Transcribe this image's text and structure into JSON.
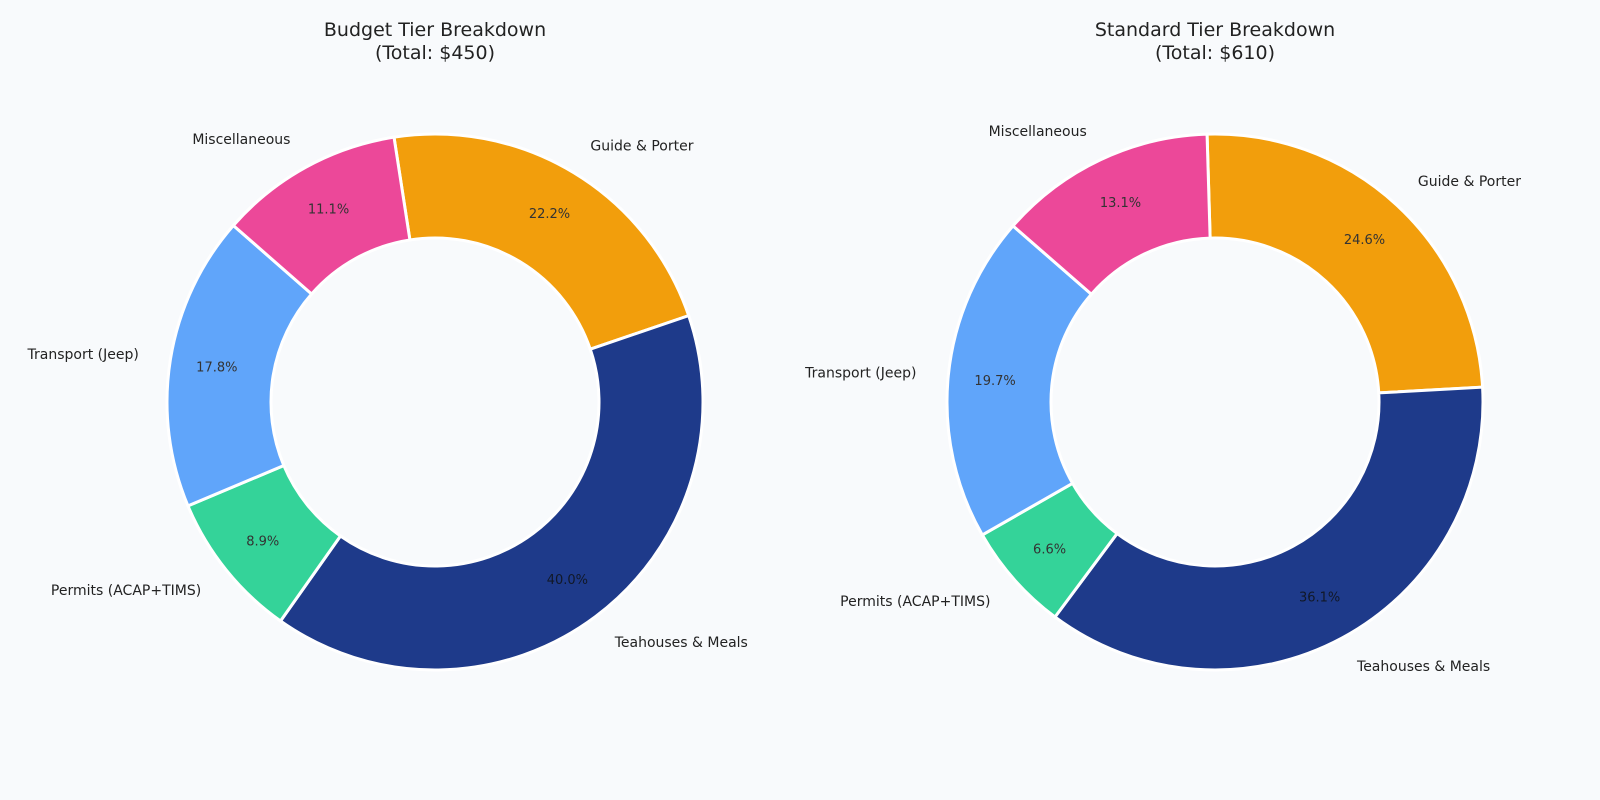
{
  "chart_data": [
    {
      "type": "pie",
      "variant": "donut",
      "title": "Budget Tier Breakdown",
      "subtitle": "(Total: $450)",
      "slices": [
        {
          "label": "Guide & Porter",
          "value": 100,
          "percent_label": "22.2%",
          "color": "#f29e0c"
        },
        {
          "label": "Teahouses & Meals",
          "value": 180,
          "percent_label": "40.0%",
          "color": "#1e3a8a"
        },
        {
          "label": "Permits (ACAP+TIMS)",
          "value": 40,
          "percent_label": "8.9%",
          "color": "#34d399"
        },
        {
          "label": "Transport (Jeep)",
          "value": 80,
          "percent_label": "17.8%",
          "color": "#60a5fa"
        },
        {
          "label": "Miscellaneous",
          "value": 50,
          "percent_label": "11.1%",
          "color": "#ec4899"
        }
      ]
    },
    {
      "type": "pie",
      "variant": "donut",
      "title": "Standard Tier Breakdown",
      "subtitle": "(Total: $610)",
      "slices": [
        {
          "label": "Guide & Porter",
          "value": 150,
          "percent_label": "24.6%",
          "color": "#f29e0c"
        },
        {
          "label": "Teahouses & Meals",
          "value": 220,
          "percent_label": "36.1%",
          "color": "#1e3a8a"
        },
        {
          "label": "Permits (ACAP+TIMS)",
          "value": 40,
          "percent_label": "6.6%",
          "color": "#34d399"
        },
        {
          "label": "Transport (Jeep)",
          "value": 120,
          "percent_label": "19.7%",
          "color": "#60a5fa"
        },
        {
          "label": "Miscellaneous",
          "value": 80,
          "percent_label": "13.1%",
          "color": "#ec4899"
        }
      ]
    }
  ]
}
